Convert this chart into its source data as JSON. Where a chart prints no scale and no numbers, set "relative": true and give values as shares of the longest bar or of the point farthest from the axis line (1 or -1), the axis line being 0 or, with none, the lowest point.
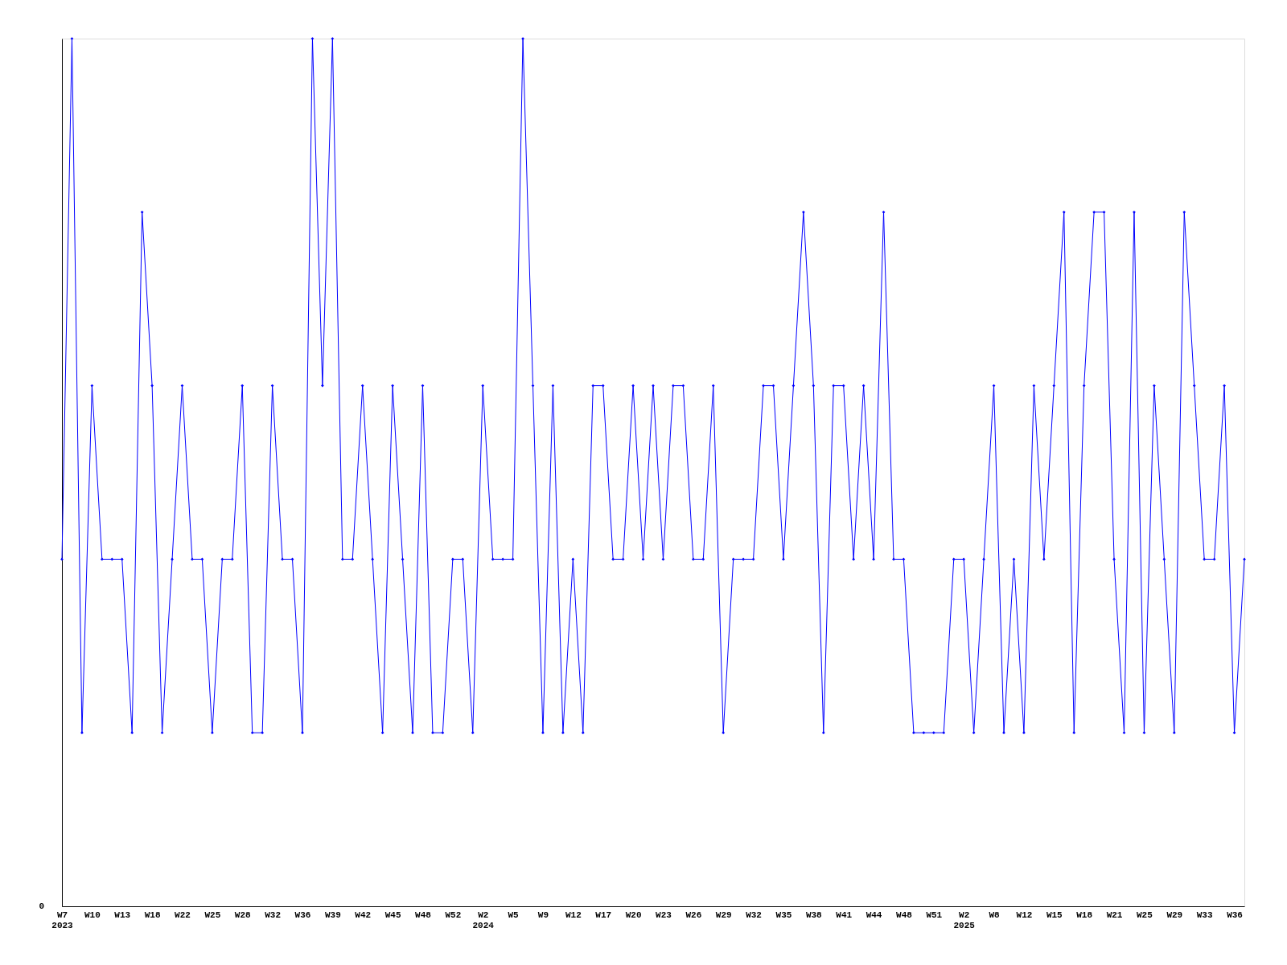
{
  "chart_data": {
    "type": "line",
    "relative": true,
    "color": "#0000ff",
    "marker": "diamond",
    "line_style": "solid",
    "grid": false,
    "annotations": [
      "0"
    ],
    "categories": [
      "W7\n2023",
      null,
      null,
      "W10",
      null,
      null,
      "W13",
      null,
      null,
      "W18",
      null,
      null,
      "W22",
      null,
      null,
      "W25",
      null,
      null,
      "W28",
      null,
      null,
      "W32",
      null,
      null,
      "W36",
      null,
      null,
      "W39",
      null,
      null,
      "W42",
      null,
      null,
      "W45",
      null,
      null,
      "W48",
      null,
      null,
      "W52",
      null,
      null,
      "W2\n2024",
      null,
      null,
      "W5",
      null,
      null,
      "W9",
      null,
      null,
      "W12",
      null,
      null,
      "W17",
      null,
      null,
      "W20",
      null,
      null,
      "W23",
      null,
      null,
      "W26",
      null,
      null,
      "W29",
      null,
      null,
      "W32",
      null,
      null,
      "W35",
      null,
      null,
      "W38",
      null,
      null,
      "W41",
      null,
      null,
      "W44",
      null,
      null,
      "W48",
      null,
      null,
      "W51",
      null,
      null,
      "W2\n2025",
      null,
      null,
      "W8",
      null,
      null,
      "W12",
      null,
      null,
      "W15",
      null,
      null,
      "W18",
      null,
      null,
      "W21",
      null,
      null,
      "W25",
      null,
      null,
      "W29",
      null,
      null,
      "W33",
      null,
      null,
      "W36",
      null
    ],
    "values": [
      0.4,
      1,
      0.2,
      0.6,
      0.4,
      0.4,
      0.4,
      0.2,
      0.8,
      0.6,
      0.2,
      0.4,
      0.6,
      0.4,
      0.4,
      0.2,
      0.4,
      0.4,
      0.6,
      0.2,
      0.2,
      0.6,
      0.4,
      0.4,
      0.2,
      1,
      0.6,
      1,
      0.4,
      0.4,
      0.6,
      0.4,
      0.2,
      0.6,
      0.4,
      0.2,
      0.6,
      0.2,
      0.2,
      0.4,
      0.4,
      0.2,
      0.6,
      0.4,
      0.4,
      0.4,
      1,
      0.6,
      0.2,
      0.6,
      0.2,
      0.4,
      0.2,
      0.6,
      0.6,
      0.4,
      0.4,
      0.6,
      0.4,
      0.6,
      0.4,
      0.6,
      0.6,
      0.4,
      0.4,
      0.6,
      0.2,
      0.4,
      0.4,
      0.4,
      0.6,
      0.6,
      0.4,
      0.6,
      0.8,
      0.6,
      0.2,
      0.6,
      0.6,
      0.4,
      0.6,
      0.4,
      0.8,
      0.4,
      0.4,
      0.2,
      0.2,
      0.2,
      0.2,
      0.4,
      0.4,
      0.2,
      0.4,
      0.6,
      0.2,
      0.4,
      0.2,
      0.6,
      0.4,
      0.6,
      0.8,
      0.2,
      0.6,
      0.8,
      0.8,
      0.4,
      0.2,
      0.8,
      0.2,
      0.6,
      0.4,
      0.2,
      0.8,
      0.6,
      0.4,
      0.4,
      0.6,
      0.2,
      0.4
    ]
  }
}
